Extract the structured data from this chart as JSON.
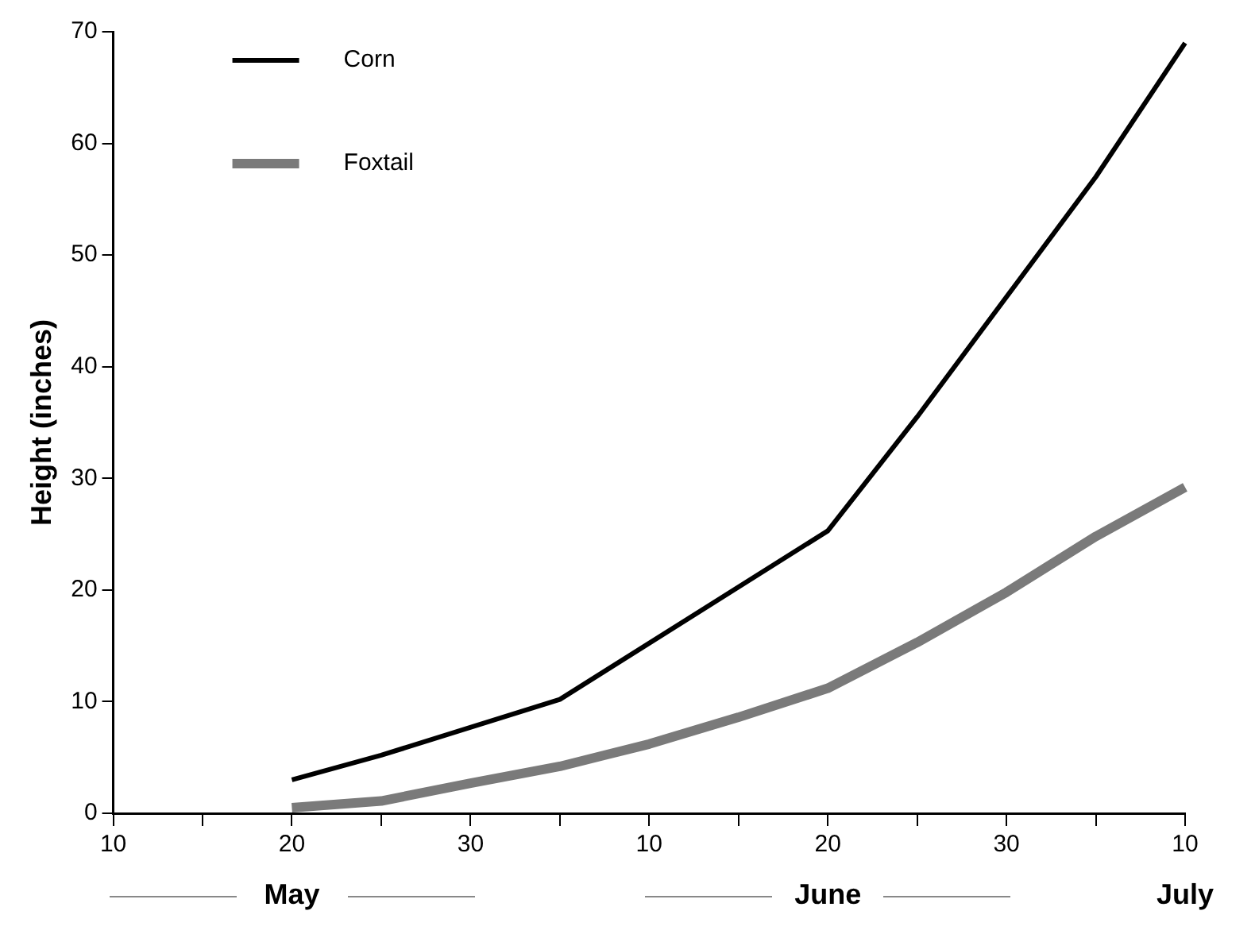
{
  "chart_data": {
    "type": "line",
    "ylabel": "Height (inches)",
    "categories": [
      "10",
      null,
      "20",
      null,
      "30",
      null,
      "10",
      null,
      "20",
      null,
      "30",
      null,
      "10"
    ],
    "series": [
      {
        "name": "Corn",
        "color": "#000000",
        "values": [
          null,
          null,
          3,
          5.2,
          null,
          10.2,
          null,
          null,
          25.3,
          35.5,
          null,
          57,
          69
        ]
      },
      {
        "name": "Foxtail",
        "color": "#7a7a7a",
        "values": [
          null,
          null,
          0.5,
          1.1,
          2.7,
          4.2,
          6.2,
          8.6,
          11.2,
          15.3,
          19.8,
          24.8,
          29.2
        ]
      }
    ],
    "ylim": [
      0,
      70
    ],
    "yticks": [
      0,
      10,
      20,
      30,
      40,
      50,
      60,
      70
    ],
    "grid": false,
    "legend": "top left",
    "marker": "none",
    "line_style": "solid",
    "annotations": [
      "May",
      "June",
      "July"
    ]
  }
}
